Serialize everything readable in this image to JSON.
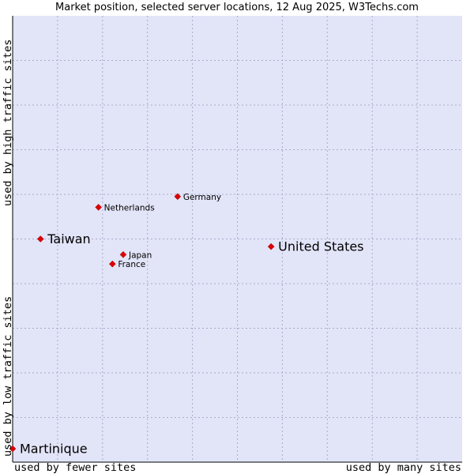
{
  "title": "Market position, selected server locations, 12 Aug 2025, W3Techs.com",
  "chart_data": {
    "type": "scatter",
    "title": "Market position, selected server locations, 12 Aug 2025, W3Techs.com",
    "xlabel_low": "used by fewer sites",
    "xlabel_high": "used by many sites",
    "ylabel_low": "used by low traffic sites",
    "ylabel_high": "used by high traffic sites",
    "xlim": [
      0,
      100
    ],
    "ylim": [
      0,
      100
    ],
    "grid": true,
    "colors": {
      "background": "#e2e4f8",
      "grid": "#a9acc9",
      "point": "#dd0000",
      "axis": "#000000"
    },
    "points": [
      {
        "label": "United States",
        "x": 57.5,
        "y": 48.3,
        "emphasis": true
      },
      {
        "label": "Taiwan",
        "x": 6.2,
        "y": 50.0,
        "emphasis": true
      },
      {
        "label": "Martinique",
        "x": 0.0,
        "y": 3.0,
        "emphasis": true
      },
      {
        "label": "Germany",
        "x": 36.7,
        "y": 59.5,
        "emphasis": false
      },
      {
        "label": "Netherlands",
        "x": 19.1,
        "y": 57.1,
        "emphasis": false
      },
      {
        "label": "Japan",
        "x": 24.6,
        "y": 46.5,
        "emphasis": false
      },
      {
        "label": "France",
        "x": 22.2,
        "y": 44.4,
        "emphasis": false
      }
    ]
  }
}
